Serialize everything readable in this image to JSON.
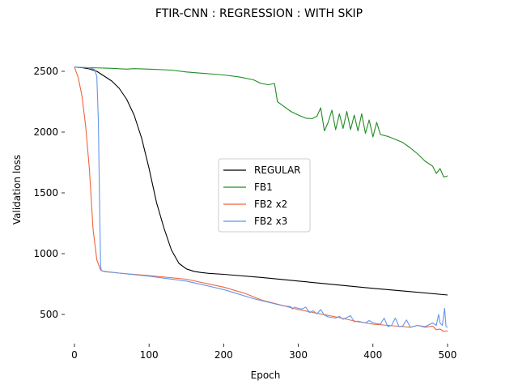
{
  "chart_data": {
    "type": "line",
    "title": "FTIR-CNN : REGRESSION : WITH SKIP",
    "xlabel": "Epoch",
    "ylabel": "Validation loss",
    "xlim": [
      -13,
      525
    ],
    "ylim": [
      260,
      2700
    ],
    "xticks": [
      0,
      100,
      200,
      300,
      400,
      500
    ],
    "yticks": [
      500,
      1000,
      1500,
      2000,
      2500
    ],
    "grid": false,
    "legend_position": "center",
    "series": [
      {
        "name": "REGULAR",
        "color": "#000000",
        "points": [
          [
            0,
            2535
          ],
          [
            10,
            2530
          ],
          [
            20,
            2520
          ],
          [
            30,
            2500
          ],
          [
            40,
            2460
          ],
          [
            50,
            2420
          ],
          [
            60,
            2360
          ],
          [
            70,
            2270
          ],
          [
            80,
            2140
          ],
          [
            90,
            1950
          ],
          [
            100,
            1700
          ],
          [
            110,
            1420
          ],
          [
            120,
            1210
          ],
          [
            130,
            1030
          ],
          [
            140,
            920
          ],
          [
            150,
            875
          ],
          [
            160,
            855
          ],
          [
            170,
            845
          ],
          [
            180,
            838
          ],
          [
            200,
            830
          ],
          [
            250,
            805
          ],
          [
            300,
            775
          ],
          [
            350,
            745
          ],
          [
            400,
            715
          ],
          [
            450,
            688
          ],
          [
            500,
            660
          ]
        ]
      },
      {
        "name": "FB1",
        "color": "#228b22",
        "points": [
          [
            0,
            2535
          ],
          [
            20,
            2530
          ],
          [
            50,
            2525
          ],
          [
            70,
            2518
          ],
          [
            80,
            2522
          ],
          [
            100,
            2518
          ],
          [
            130,
            2510
          ],
          [
            150,
            2495
          ],
          [
            180,
            2480
          ],
          [
            200,
            2470
          ],
          [
            220,
            2455
          ],
          [
            240,
            2430
          ],
          [
            250,
            2400
          ],
          [
            260,
            2390
          ],
          [
            268,
            2400
          ],
          [
            270,
            2330
          ],
          [
            272,
            2250
          ],
          [
            280,
            2215
          ],
          [
            290,
            2170
          ],
          [
            300,
            2140
          ],
          [
            310,
            2115
          ],
          [
            318,
            2110
          ],
          [
            325,
            2130
          ],
          [
            330,
            2200
          ],
          [
            335,
            2010
          ],
          [
            340,
            2080
          ],
          [
            345,
            2180
          ],
          [
            350,
            2020
          ],
          [
            355,
            2150
          ],
          [
            360,
            2030
          ],
          [
            365,
            2170
          ],
          [
            370,
            2020
          ],
          [
            375,
            2140
          ],
          [
            380,
            2010
          ],
          [
            385,
            2150
          ],
          [
            390,
            1990
          ],
          [
            395,
            2100
          ],
          [
            400,
            1960
          ],
          [
            405,
            2080
          ],
          [
            410,
            1980
          ],
          [
            420,
            1965
          ],
          [
            430,
            1940
          ],
          [
            440,
            1915
          ],
          [
            450,
            1870
          ],
          [
            460,
            1820
          ],
          [
            470,
            1760
          ],
          [
            480,
            1720
          ],
          [
            485,
            1660
          ],
          [
            490,
            1700
          ],
          [
            495,
            1630
          ],
          [
            500,
            1640
          ]
        ]
      },
      {
        "name": "FB2 x2",
        "color": "#f0643c",
        "points": [
          [
            0,
            2535
          ],
          [
            5,
            2450
          ],
          [
            10,
            2300
          ],
          [
            15,
            2050
          ],
          [
            20,
            1700
          ],
          [
            25,
            1200
          ],
          [
            30,
            950
          ],
          [
            35,
            865
          ],
          [
            40,
            852
          ],
          [
            60,
            840
          ],
          [
            100,
            820
          ],
          [
            150,
            790
          ],
          [
            200,
            725
          ],
          [
            230,
            670
          ],
          [
            250,
            620
          ],
          [
            300,
            540
          ],
          [
            350,
            480
          ],
          [
            380,
            440
          ],
          [
            400,
            420
          ],
          [
            420,
            410
          ],
          [
            440,
            400
          ],
          [
            450,
            395
          ],
          [
            460,
            410
          ],
          [
            470,
            395
          ],
          [
            480,
            405
          ],
          [
            485,
            375
          ],
          [
            490,
            380
          ],
          [
            495,
            360
          ],
          [
            500,
            365
          ]
        ]
      },
      {
        "name": "FB2 x3",
        "color": "#6495ed",
        "points": [
          [
            0,
            2535
          ],
          [
            20,
            2530
          ],
          [
            27,
            2515
          ],
          [
            30,
            2460
          ],
          [
            32,
            2100
          ],
          [
            34,
            1300
          ],
          [
            35,
            900
          ],
          [
            36,
            860
          ],
          [
            40,
            855
          ],
          [
            60,
            840
          ],
          [
            100,
            815
          ],
          [
            150,
            775
          ],
          [
            200,
            705
          ],
          [
            240,
            630
          ],
          [
            260,
            600
          ],
          [
            280,
            570
          ],
          [
            290,
            565
          ],
          [
            292,
            545
          ],
          [
            295,
            560
          ],
          [
            300,
            550
          ],
          [
            305,
            545
          ],
          [
            310,
            560
          ],
          [
            315,
            515
          ],
          [
            320,
            530
          ],
          [
            325,
            505
          ],
          [
            330,
            540
          ],
          [
            335,
            495
          ],
          [
            340,
            480
          ],
          [
            350,
            470
          ],
          [
            355,
            485
          ],
          [
            360,
            460
          ],
          [
            370,
            490
          ],
          [
            375,
            440
          ],
          [
            380,
            445
          ],
          [
            390,
            430
          ],
          [
            395,
            450
          ],
          [
            400,
            430
          ],
          [
            410,
            420
          ],
          [
            415,
            470
          ],
          [
            420,
            400
          ],
          [
            425,
            410
          ],
          [
            430,
            470
          ],
          [
            435,
            400
          ],
          [
            440,
            405
          ],
          [
            445,
            455
          ],
          [
            450,
            395
          ],
          [
            460,
            410
          ],
          [
            470,
            400
          ],
          [
            480,
            430
          ],
          [
            485,
            410
          ],
          [
            488,
            500
          ],
          [
            490,
            430
          ],
          [
            493,
            410
          ],
          [
            496,
            550
          ],
          [
            498,
            400
          ],
          [
            500,
            395
          ]
        ]
      }
    ]
  }
}
